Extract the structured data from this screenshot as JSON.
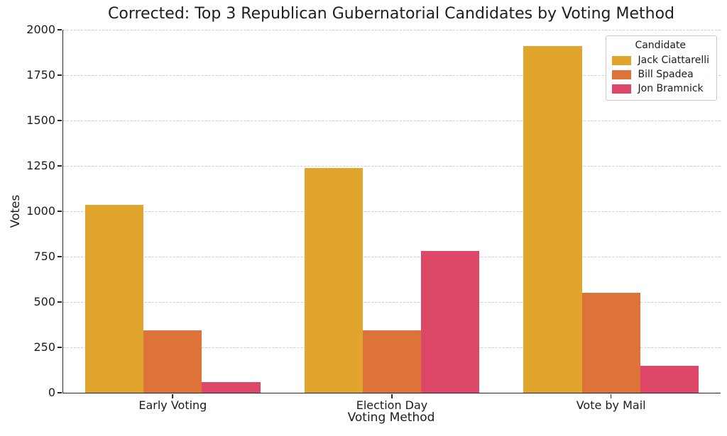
{
  "chart_data": {
    "type": "bar",
    "title": "Corrected: Top 3 Republican Gubernatorial Candidates by Voting Method",
    "xlabel": "Voting Method",
    "ylabel": "Votes",
    "categories": [
      "Early Voting",
      "Election Day",
      "Vote by Mail"
    ],
    "series": [
      {
        "name": "Jack Ciattarelli",
        "color": "#E1A42C",
        "values": [
          1035,
          1240,
          1910
        ]
      },
      {
        "name": "Bill Spadea",
        "color": "#DD7338",
        "values": [
          345,
          345,
          550
        ]
      },
      {
        "name": "Jon Bramnick",
        "color": "#DD4768",
        "values": [
          60,
          780,
          150
        ]
      }
    ],
    "ylim": [
      0,
      2000
    ],
    "yticks": [
      0,
      250,
      500,
      750,
      1000,
      1250,
      1500,
      1750,
      2000
    ],
    "grid": {
      "axis": "y",
      "style": "dashed",
      "color": "#cdcdcd"
    },
    "legend": {
      "title": "Candidate",
      "position": "upper-right"
    },
    "bar_group_width": 0.8
  },
  "colors": {
    "spine": "#262626",
    "text": "#1c1c1c",
    "background": "#ffffff"
  }
}
